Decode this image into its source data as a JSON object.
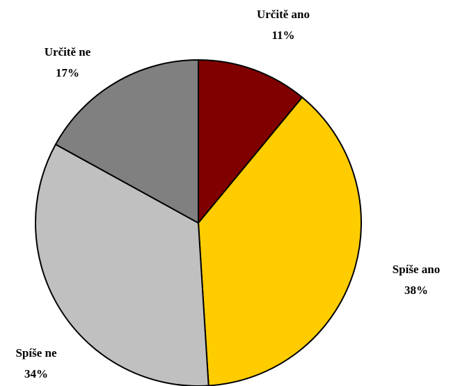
{
  "chart_data": {
    "type": "pie",
    "categories": [
      "Určitě ano",
      "Spíše ano",
      "Spíše ne",
      "Určitě ne"
    ],
    "values": [
      11,
      38,
      34,
      17
    ],
    "value_labels": [
      "11%",
      "38%",
      "34%",
      "17%"
    ],
    "colors": [
      "#800000",
      "#ffcc00",
      "#c0c0c0",
      "#808080"
    ]
  }
}
